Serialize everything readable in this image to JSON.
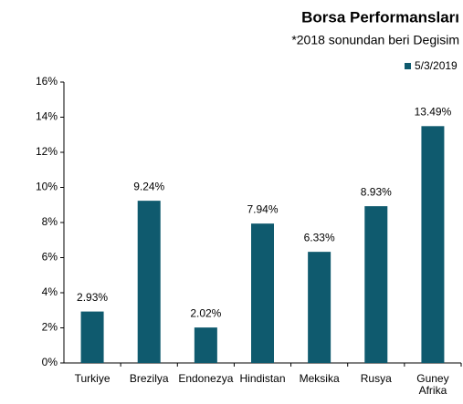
{
  "chart_data": {
    "type": "bar",
    "title": "Borsa Performansları",
    "subtitle": "*2018 sonundan beri Degisim",
    "categories": [
      "Turkiye",
      "Brezilya",
      "Endonezya",
      "Hindistan",
      "Meksika",
      "Rusya",
      "Guney Afrika"
    ],
    "series": [
      {
        "name": "5/3/2019",
        "color": "#0f5a6e",
        "values": [
          2.93,
          9.24,
          2.02,
          7.94,
          6.33,
          8.93,
          13.49
        ],
        "value_labels": [
          "2.93%",
          "9.24%",
          "2.02%",
          "7.94%",
          "6.33%",
          "8.93%",
          "13.49%"
        ]
      }
    ],
    "ylim": [
      0,
      16
    ],
    "yticks": [
      {
        "value": 0,
        "label": "0%"
      },
      {
        "value": 2,
        "label": "2%"
      },
      {
        "value": 4,
        "label": "4%"
      },
      {
        "value": 6,
        "label": "6%"
      },
      {
        "value": 8,
        "label": "8%"
      },
      {
        "value": 10,
        "label": "10%"
      },
      {
        "value": 12,
        "label": "12%"
      },
      {
        "value": 14,
        "label": "14%"
      },
      {
        "value": 16,
        "label": "16%"
      }
    ],
    "grid": false,
    "legend": "top-right"
  }
}
